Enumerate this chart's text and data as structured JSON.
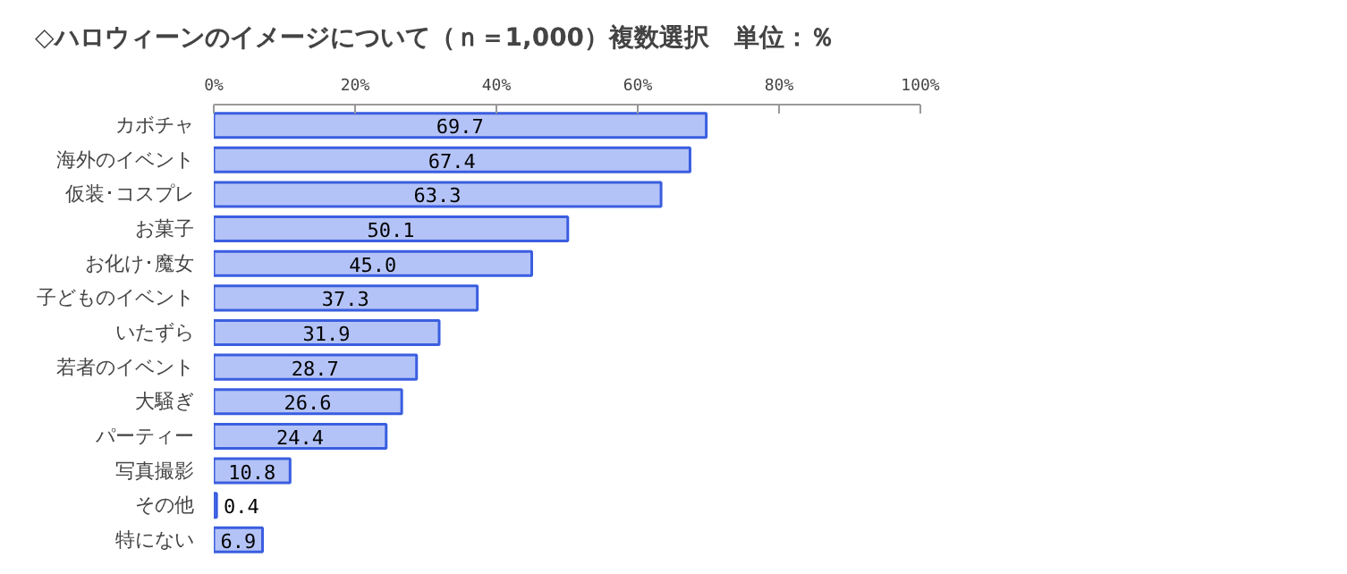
{
  "chart_data": {
    "type": "bar",
    "orientation": "horizontal",
    "title": "◇ハロウィーンのイメージについて（ｎ＝1,000）複数選択　単位：％",
    "categories": [
      "カボチャ",
      "海外のイベント",
      "仮装･コスプレ",
      "お菓子",
      "お化け･魔女",
      "子どものイベント",
      "いたずら",
      "若者のイベント",
      "大騒ぎ",
      "パーティー",
      "写真撮影",
      "その他",
      "特にない"
    ],
    "values": [
      69.7,
      67.4,
      63.3,
      50.1,
      45.0,
      37.3,
      31.9,
      28.7,
      26.6,
      24.4,
      10.8,
      0.4,
      6.9
    ],
    "value_labels": [
      "69.7",
      "67.4",
      "63.3",
      "50.1",
      "45.0",
      "37.3",
      "31.9",
      "28.7",
      "26.6",
      "24.4",
      "10.8",
      "0.4",
      "6.9"
    ],
    "color": "#b4c3f7",
    "xlim": [
      0,
      100
    ],
    "xticks": [
      {
        "value": 0,
        "label": "0%"
      },
      {
        "value": 20,
        "label": "20%"
      },
      {
        "value": 40,
        "label": "40%"
      },
      {
        "value": 60,
        "label": "60%"
      },
      {
        "value": 80,
        "label": "80%"
      },
      {
        "value": 100,
        "label": "100%"
      }
    ],
    "grid": false
  }
}
